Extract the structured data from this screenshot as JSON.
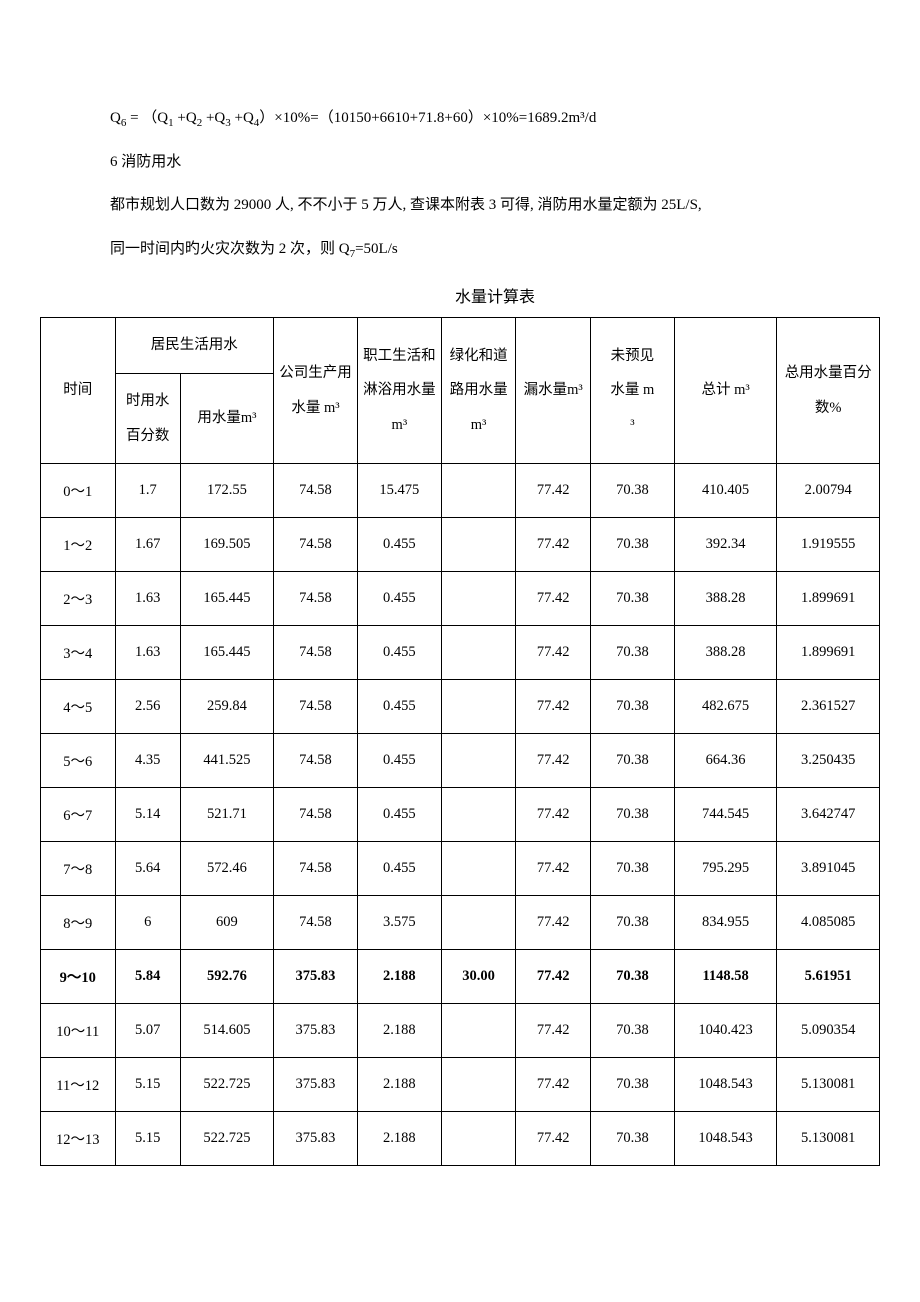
{
  "paragraphs": {
    "p1_pre": "Q",
    "p1_sub1": "6",
    "p1_mid1": " = （Q",
    "p1_sub2": "1",
    "p1_mid2": " +Q",
    "p1_sub3": "2",
    "p1_mid3": " +Q",
    "p1_sub4": "3",
    "p1_mid4": " +Q",
    "p1_sub5": "4",
    "p1_mid5": "）×10%=（10150+6610+71.8+60）×10%=1689.2m³/d",
    "p2": "6 消防用水",
    "p3": "都市规划人口数为 29000 人, 不不小于 5 万人, 查课本附表 3 可得, 消防用水量定额为 25L/S,",
    "p4_pre": "同一时间内旳火灾次数为 2 次，则 Q",
    "p4_sub": "7",
    "p4_post": "=50L/s"
  },
  "table_title": "水量计算表",
  "headers": {
    "time": "时间",
    "residential": "居民生活用水",
    "res_pct": "时用水百分数",
    "res_vol": "用水量m³",
    "industrial": "公司生产用水量 m³",
    "bath": "职工生活和淋浴用水量 m³",
    "green": "绿化和道路用水量m³",
    "leak": "漏水量m³",
    "unforeseen_l1": "未预见",
    "unforeseen_l2": "水量 m",
    "unforeseen_l3": "³",
    "total": "总计 m³",
    "total_pct": "总用水量百分数%"
  },
  "rows": [
    {
      "time": "0～1",
      "pct": "1.7",
      "vol": "172.55",
      "ind": "74.58",
      "bath": "15.475",
      "green": "",
      "leak": "77.42",
      "unf": "70.38",
      "total": "410.405",
      "totpct": "2.00794",
      "bold": false
    },
    {
      "time": "1～2",
      "pct": "1.67",
      "vol": "169.505",
      "ind": "74.58",
      "bath": "0.455",
      "green": "",
      "leak": "77.42",
      "unf": "70.38",
      "total": "392.34",
      "totpct": "1.919555",
      "bold": false
    },
    {
      "time": "2～3",
      "pct": "1.63",
      "vol": "165.445",
      "ind": "74.58",
      "bath": "0.455",
      "green": "",
      "leak": "77.42",
      "unf": "70.38",
      "total": "388.28",
      "totpct": "1.899691",
      "bold": false
    },
    {
      "time": "3～4",
      "pct": "1.63",
      "vol": "165.445",
      "ind": "74.58",
      "bath": "0.455",
      "green": "",
      "leak": "77.42",
      "unf": "70.38",
      "total": "388.28",
      "totpct": "1.899691",
      "bold": false
    },
    {
      "time": "4～5",
      "pct": "2.56",
      "vol": "259.84",
      "ind": "74.58",
      "bath": "0.455",
      "green": "",
      "leak": "77.42",
      "unf": "70.38",
      "total": "482.675",
      "totpct": "2.361527",
      "bold": false
    },
    {
      "time": "5～6",
      "pct": "4.35",
      "vol": "441.525",
      "ind": "74.58",
      "bath": "0.455",
      "green": "",
      "leak": "77.42",
      "unf": "70.38",
      "total": "664.36",
      "totpct": "3.250435",
      "bold": false
    },
    {
      "time": "6～7",
      "pct": "5.14",
      "vol": "521.71",
      "ind": "74.58",
      "bath": "0.455",
      "green": "",
      "leak": "77.42",
      "unf": "70.38",
      "total": "744.545",
      "totpct": "3.642747",
      "bold": false
    },
    {
      "time": "7～8",
      "pct": "5.64",
      "vol": "572.46",
      "ind": "74.58",
      "bath": "0.455",
      "green": "",
      "leak": "77.42",
      "unf": "70.38",
      "total": "795.295",
      "totpct": "3.891045",
      "bold": false
    },
    {
      "time": "8～9",
      "pct": "6",
      "vol": "609",
      "ind": "74.58",
      "bath": "3.575",
      "green": "",
      "leak": "77.42",
      "unf": "70.38",
      "total": "834.955",
      "totpct": "4.085085",
      "bold": false
    },
    {
      "time": "9～10",
      "pct": "5.84",
      "vol": "592.76",
      "ind": "375.83",
      "bath": "2.188",
      "green": "30.00",
      "leak": "77.42",
      "unf": "70.38",
      "total": "1148.58",
      "totpct": "5.61951",
      "bold": true
    },
    {
      "time": "10～11",
      "pct": "5.07",
      "vol": "514.605",
      "ind": "375.83",
      "bath": "2.188",
      "green": "",
      "leak": "77.42",
      "unf": "70.38",
      "total": "1040.423",
      "totpct": "5.090354",
      "bold": false
    },
    {
      "time": "11～12",
      "pct": "5.15",
      "vol": "522.725",
      "ind": "375.83",
      "bath": "2.188",
      "green": "",
      "leak": "77.42",
      "unf": "70.38",
      "total": "1048.543",
      "totpct": "5.130081",
      "bold": false
    },
    {
      "time": "12～13",
      "pct": "5.15",
      "vol": "522.725",
      "ind": "375.83",
      "bath": "2.188",
      "green": "",
      "leak": "77.42",
      "unf": "70.38",
      "total": "1048.543",
      "totpct": "5.130081",
      "bold": false
    }
  ]
}
